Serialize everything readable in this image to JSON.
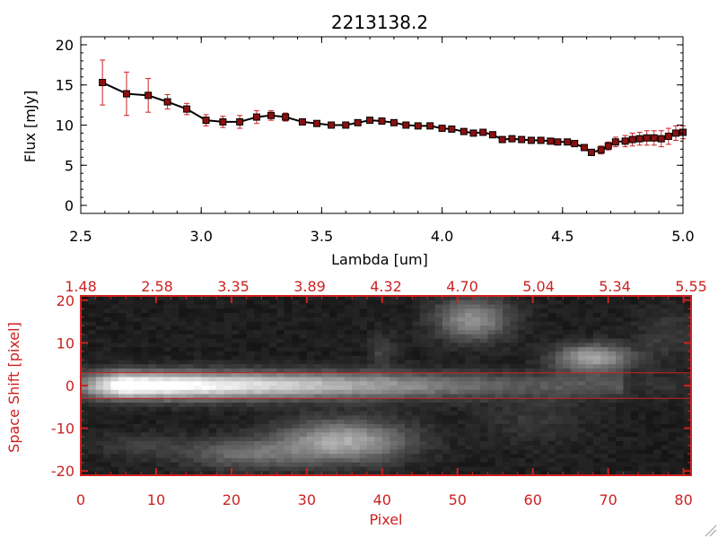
{
  "chart_data": [
    {
      "type": "line",
      "title": "2213138.2",
      "xlabel": "Lambda [um]",
      "ylabel": "Flux [mJy]",
      "xlim": [
        2.5,
        5.0
      ],
      "ylim": [
        -1,
        21
      ],
      "x_ticks": [
        "2.5",
        "3.0",
        "3.5",
        "4.0",
        "4.5",
        "5.0"
      ],
      "y_ticks": [
        "0",
        "5",
        "10",
        "15",
        "20"
      ],
      "grid": false,
      "legend": "none",
      "colors": {
        "line": "#000000",
        "marker": "#8b1010",
        "error_bar": "#cc2222"
      },
      "series": [
        {
          "x": [
            2.59,
            2.69,
            2.78,
            2.86,
            2.94,
            3.02,
            3.09,
            3.16,
            3.23,
            3.29,
            3.35,
            3.42,
            3.48,
            3.54,
            3.6,
            3.65,
            3.7,
            3.75,
            3.8,
            3.85,
            3.9,
            3.95,
            4.0,
            4.04,
            4.09,
            4.13,
            4.17,
            4.21,
            4.25,
            4.29,
            4.33,
            4.37,
            4.41,
            4.45,
            4.48,
            4.52,
            4.55,
            4.59,
            4.62,
            4.66,
            4.69,
            4.72,
            4.76,
            4.79,
            4.82,
            4.85,
            4.88,
            4.91,
            4.94,
            4.97,
            5.0
          ],
          "y": [
            15.3,
            13.9,
            13.7,
            12.9,
            12.0,
            10.6,
            10.4,
            10.4,
            11.0,
            11.2,
            11.0,
            10.4,
            10.2,
            10.0,
            10.0,
            10.3,
            10.6,
            10.5,
            10.3,
            10.0,
            9.9,
            9.9,
            9.6,
            9.5,
            9.2,
            9.0,
            9.1,
            8.8,
            8.2,
            8.3,
            8.2,
            8.1,
            8.1,
            8.0,
            7.9,
            7.9,
            7.7,
            7.2,
            6.6,
            6.9,
            7.4,
            7.9,
            8.0,
            8.2,
            8.3,
            8.4,
            8.4,
            8.3,
            8.6,
            9.0,
            9.1
          ],
          "yerr": [
            2.8,
            2.7,
            2.1,
            0.9,
            0.7,
            0.7,
            0.7,
            0.8,
            0.8,
            0.6,
            0.5,
            0.2,
            0.2,
            0.2,
            0.2,
            0.2,
            0.2,
            0.2,
            0.2,
            0.2,
            0.2,
            0.2,
            0.2,
            0.2,
            0.2,
            0.2,
            0.2,
            0.2,
            0.2,
            0.2,
            0.2,
            0.2,
            0.2,
            0.2,
            0.2,
            0.2,
            0.2,
            0.3,
            0.4,
            0.5,
            0.5,
            0.6,
            0.7,
            0.8,
            0.8,
            0.9,
            0.9,
            1.0,
            1.0,
            0.9,
            0.8
          ]
        }
      ]
    },
    {
      "type": "heatmap",
      "title": "",
      "xlabel": "Pixel",
      "ylabel": "Space Shift [pixel]",
      "xlim": [
        0,
        81
      ],
      "ylim": [
        -21,
        21
      ],
      "x_ticks": [
        "0",
        "10",
        "20",
        "30",
        "40",
        "50",
        "60",
        "70",
        "80"
      ],
      "top_ticks": [
        "1.48",
        "2.58",
        "3.35",
        "3.89",
        "4.32",
        "4.70",
        "5.04",
        "5.34",
        "5.55"
      ],
      "y_ticks": [
        "-20",
        "-10",
        "0",
        "10",
        "20"
      ],
      "colormap": "grayscale",
      "extraction_window": [
        -3,
        3
      ],
      "colors": {
        "axes": "#cc2222",
        "window_lines": "#cc2222"
      }
    }
  ]
}
